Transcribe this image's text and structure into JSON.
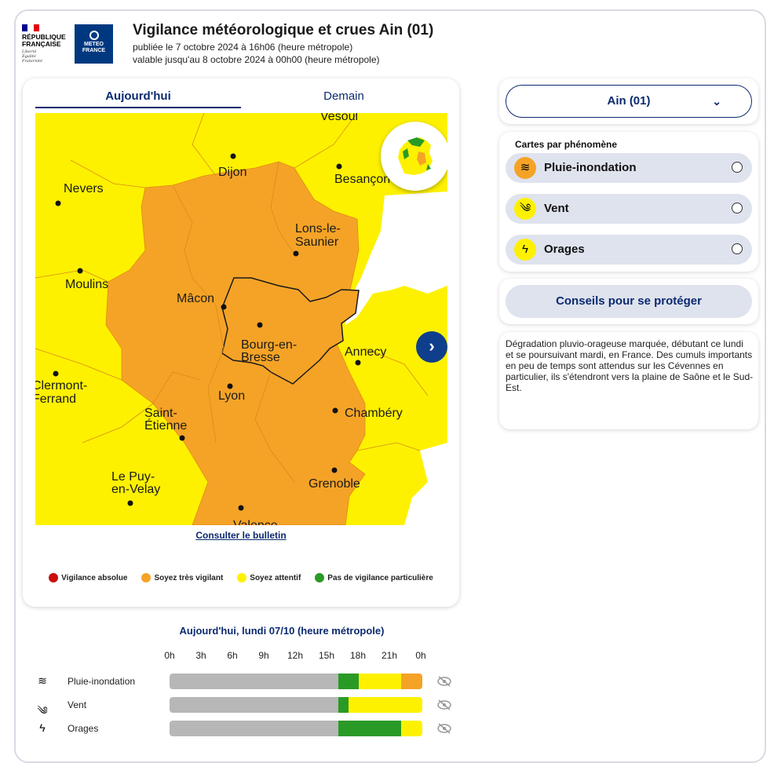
{
  "header": {
    "republic_name_line1": "RÉPUBLIQUE",
    "republic_name_line2": "FRANÇAISE",
    "motto": [
      "Liberté",
      "Égalité",
      "Fraternité"
    ],
    "meteo_line1": "METEO",
    "meteo_line2": "FRANCE",
    "title": "Vigilance météorologique et crues Ain  (01)",
    "published": "publiée le 7 octobre 2024 à 16h06 (heure métropole)",
    "valid_until": "valable jusqu'au 8 octobre 2024 à 00h00 (heure métropole)"
  },
  "map_card": {
    "tabs": [
      {
        "label": "Aujourd'hui",
        "active": true
      },
      {
        "label": "Demain",
        "active": false
      }
    ],
    "cities": {
      "vesoul": "Vesoul",
      "dijon": "Dijon",
      "nevers": "Nevers",
      "besancon": "Besançon",
      "lons1": "Lons-le-",
      "lons2": "Saunier",
      "moulins": "Moulins",
      "macon": "Mâcon",
      "bourg1": "Bourg-en-",
      "bourg2": "Bresse",
      "annecy": "Annecy",
      "clermont1": "Clermont-",
      "clermont2": "Ferrand",
      "lyon": "Lyon",
      "stetienne1": "Saint-",
      "stetienne2": "Étienne",
      "chambery": "Chambéry",
      "lepuy1": "Le Puy-",
      "lepuy2": "en-Velay",
      "grenoble": "Grenoble",
      "valence": "Valence"
    },
    "next_icon": "chevron-right-icon",
    "bulletin_link": "Consulter le bulletin",
    "legend": [
      {
        "label": "Vigilance absolue",
        "color": "#c8100e"
      },
      {
        "label": "Soyez très vigilant",
        "color": "#f5a327"
      },
      {
        "label": "Soyez attentif",
        "color": "#fdf100"
      },
      {
        "label": "Pas de vigilance particulière",
        "color": "#2a9a26"
      }
    ]
  },
  "right_panel": {
    "department_select": "Ain  (01)",
    "phenomena_title": "Cartes par phénomène",
    "phenomena": [
      {
        "label": "Pluie-inondation",
        "icon": "rain-flood-icon",
        "color": "#f5a327"
      },
      {
        "label": "Vent",
        "icon": "wind-icon",
        "color": "#fdf100"
      },
      {
        "label": "Orages",
        "icon": "thunderstorm-icon",
        "color": "#fdf100"
      }
    ],
    "advice_button": "Conseils pour se protéger",
    "description": "Dégradation pluvio-orageuse marquée, débutant ce lundi et se poursuivant mardi, en France. Des cumuls importants en peu de temps sont attendus sur les Cévennes en particulier, ils s'étendront vers la plaine de Saône et le Sud-Est."
  },
  "timeline": {
    "title": "Aujourd'hui, lundi 07/10 (heure métropole)",
    "hours": [
      "0h",
      "3h",
      "6h",
      "9h",
      "12h",
      "15h",
      "18h",
      "21h",
      "0h"
    ],
    "rows": [
      {
        "label": "Pluie-inondation",
        "icon": "rain-flood-icon",
        "segments": [
          {
            "fraction": 0.667,
            "color": "#b7b7b7"
          },
          {
            "fraction": 0.083,
            "color": "#2a9a26"
          },
          {
            "fraction": 0.167,
            "color": "#fdf100"
          },
          {
            "fraction": 0.083,
            "color": "#f5a327"
          }
        ]
      },
      {
        "label": "Vent",
        "icon": "wind-icon",
        "segments": [
          {
            "fraction": 0.667,
            "color": "#b7b7b7"
          },
          {
            "fraction": 0.042,
            "color": "#2a9a26"
          },
          {
            "fraction": 0.291,
            "color": "#fdf100"
          }
        ]
      },
      {
        "label": "Orages",
        "icon": "thunderstorm-icon",
        "segments": [
          {
            "fraction": 0.667,
            "color": "#b7b7b7"
          },
          {
            "fraction": 0.25,
            "color": "#2a9a26"
          },
          {
            "fraction": 0.083,
            "color": "#fdf100"
          }
        ]
      }
    ],
    "visibility_icon": "eye-slash-icon"
  }
}
